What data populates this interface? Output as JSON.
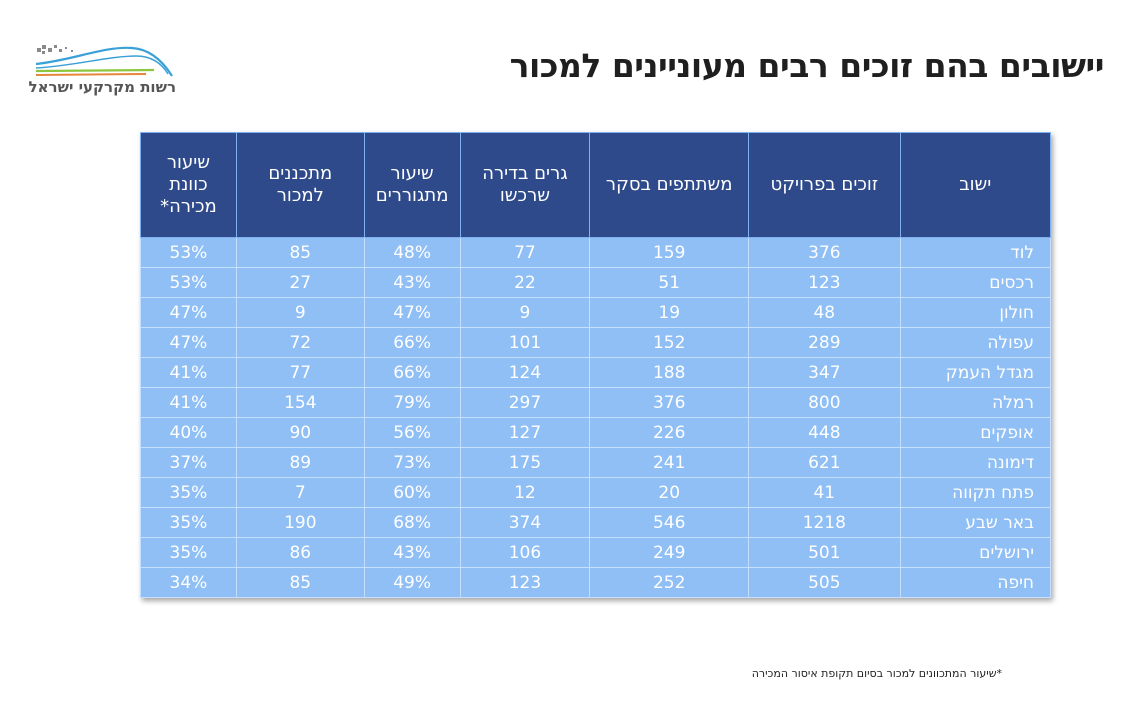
{
  "logo": {
    "text": "רשות מקרקעי ישראל",
    "colors": {
      "blue": "#3aa0d8",
      "green": "#8cc63f",
      "orange": "#e6863b",
      "gray": "#8a8a8a"
    }
  },
  "title": "יישובים בהם זוכים רבים מעוניינים למכור",
  "table": {
    "headers": [
      "ישוב",
      "זוכים בפרויקט",
      "משתתפים בסקר",
      "גרים בדירה שרכשו",
      "שיעור מתגוררים",
      "מתכננים למכור",
      "שיעור כוונת מכירה*"
    ],
    "rows": [
      [
        "לוד",
        "376",
        "159",
        "77",
        "48%",
        "85",
        "53%"
      ],
      [
        "רכסים",
        "123",
        "51",
        "22",
        "43%",
        "27",
        "53%"
      ],
      [
        "חולון",
        "48",
        "19",
        "9",
        "47%",
        "9",
        "47%"
      ],
      [
        "עפולה",
        "289",
        "152",
        "101",
        "66%",
        "72",
        "47%"
      ],
      [
        "מגדל העמק",
        "347",
        "188",
        "124",
        "66%",
        "77",
        "41%"
      ],
      [
        "רמלה",
        "800",
        "376",
        "297",
        "79%",
        "154",
        "41%"
      ],
      [
        "אופקים",
        "448",
        "226",
        "127",
        "56%",
        "90",
        "40%"
      ],
      [
        "דימונה",
        "621",
        "241",
        "175",
        "73%",
        "89",
        "37%"
      ],
      [
        "פתח תקווה",
        "41",
        "20",
        "12",
        "60%",
        "7",
        "35%"
      ],
      [
        "באר שבע",
        "1218",
        "546",
        "374",
        "68%",
        "190",
        "35%"
      ],
      [
        "ירושלים",
        "501",
        "249",
        "106",
        "43%",
        "86",
        "35%"
      ],
      [
        "חיפה",
        "505",
        "252",
        "123",
        "49%",
        "85",
        "34%"
      ]
    ]
  },
  "footnote": "*שיעור המתכוונים למכור בסיום תקופת איסור המכירה",
  "colors": {
    "header_bg": "#2e4a8a",
    "cell_bg": "#8fbff5",
    "grid": "#c5dfff"
  }
}
